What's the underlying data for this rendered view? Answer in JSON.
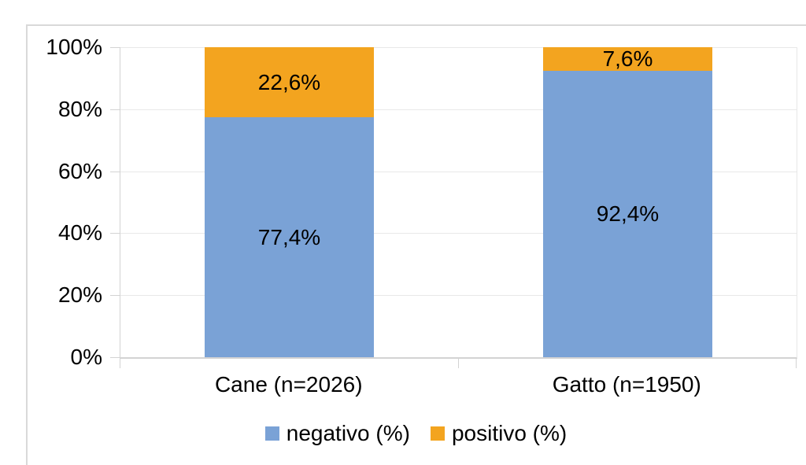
{
  "chart_data": {
    "type": "bar",
    "stacked": true,
    "percent_stacked": true,
    "title": "",
    "xlabel": "",
    "ylabel": "",
    "categories": [
      "Cane (n=2026)",
      "Gatto (n=1950)"
    ],
    "series": [
      {
        "name": "negativo (%)",
        "color": "#7aa2d6",
        "values": [
          77.4,
          92.4
        ],
        "value_labels": [
          "77,4%",
          "92,4%"
        ]
      },
      {
        "name": "positivo (%)",
        "color": "#f3a41f",
        "values": [
          22.6,
          7.6
        ],
        "value_labels": [
          "22,6%",
          "7,6%"
        ]
      }
    ],
    "y_axis": {
      "min": 0,
      "max": 100,
      "tick_labels": [
        "0%",
        "20%",
        "40%",
        "60%",
        "80%",
        "100%"
      ]
    },
    "grid": true,
    "gridline_color": "#e8e8e8",
    "frame_color": "#d9d9d9",
    "text_color": "#000000",
    "legend_position": "bottom",
    "legend": {
      "items": [
        {
          "label": "negativo (%)",
          "color": "#7aa2d6"
        },
        {
          "label": "positivo (%)",
          "color": "#f3a41f"
        }
      ]
    }
  }
}
